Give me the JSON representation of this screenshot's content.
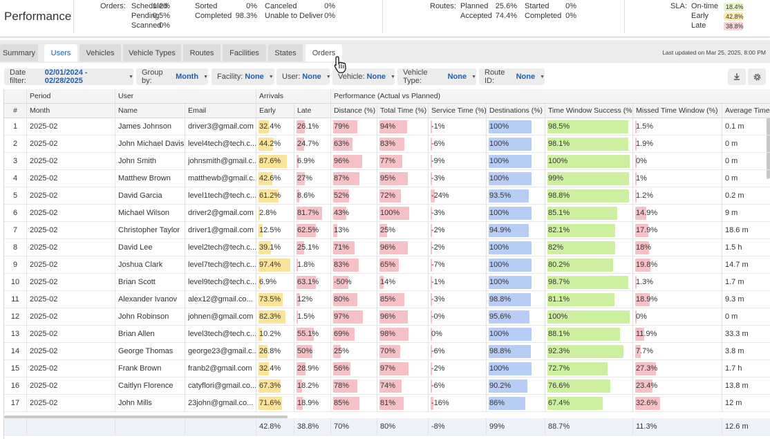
{
  "header": {
    "title": "Performance",
    "orders_label": "Orders:",
    "orders": [
      {
        "label": "Scheduled",
        "value": "1.2%"
      },
      {
        "label": "Pending",
        "value": "0.5%"
      },
      {
        "label": "Scanned",
        "value": "0%"
      },
      {
        "label": "Sorted",
        "value": "0%"
      },
      {
        "label": "Completed",
        "value": "98.3%"
      },
      {
        "label": "Canceled",
        "value": "0%"
      },
      {
        "label": "Unable to Deliver",
        "value": "0%"
      }
    ],
    "routes_label": "Routes:",
    "routes": [
      {
        "label": "Planned",
        "value": "25.6%"
      },
      {
        "label": "Accepted",
        "value": "74.4%"
      },
      {
        "label": "Started",
        "value": "0%"
      },
      {
        "label": "Completed",
        "value": "0%"
      }
    ],
    "sla_label": "SLA:",
    "sla": [
      {
        "label": "On-time",
        "value": "18.4%",
        "color": "#e6f5c8"
      },
      {
        "label": "Early",
        "value": "42.8%",
        "color": "#fbeab0"
      },
      {
        "label": "Late",
        "value": "38.8%",
        "color": "#f9d3d6"
      }
    ]
  },
  "tabs": [
    "Summary",
    "Users",
    "Vehicles",
    "Vehicle Types",
    "Routes",
    "Facilities",
    "States",
    "Orders"
  ],
  "active_tab": "Users",
  "last_updated": "Last updated on Mar 25, 2025, 8:00 PM",
  "filters": [
    {
      "label": "Date filter:",
      "value": "02/01/2024 - 02/28/2025"
    },
    {
      "label": "Group by:",
      "value": "Month"
    },
    {
      "label": "Facility:",
      "value": "None"
    },
    {
      "label": "User:",
      "value": "None"
    },
    {
      "label": "Vehicle:",
      "value": "None"
    },
    {
      "label": "Vehicle Type:",
      "value": "None"
    },
    {
      "label": "Route ID:",
      "value": "None"
    }
  ],
  "icons": {
    "download": "download-icon",
    "settings": "gear-icon",
    "cursor": "hand-pointer-icon",
    "caret": "caret-down-icon"
  },
  "colors": {
    "early": "#fbe39a",
    "late": "#f6c1c6",
    "perf": "#f6c1c6",
    "destinations": "#b8cdf5",
    "tws": "#cdf0a0",
    "missed": "#f6c1c6",
    "accent": "#1a5fb4"
  },
  "group_headers": {
    "period": "Period",
    "user": "User",
    "arrivals": "Arrivals",
    "performance": "Performance (Actual vs Planned)"
  },
  "columns": [
    "#",
    "Month",
    "Name",
    "Email",
    "Early",
    "Late",
    "Distance (%)",
    "Total Time (%)",
    "Service Time (%)",
    "Destinations (%)",
    "Time Window Success (%)",
    "Missed Time Window (%)",
    "Average Time"
  ],
  "rows": [
    [
      "1",
      "2025-02",
      "James Johnson",
      "driver3@gmail.com",
      "32.4%",
      "26.1%",
      "79%",
      "94%",
      "-1%",
      "100%",
      "98.5%",
      "1.5%",
      "0.1 m"
    ],
    [
      "2",
      "2025-02",
      "John Michael Davis",
      "level4tech@tech.c...",
      "44.2%",
      "24.7%",
      "63%",
      "83%",
      "-6%",
      "100%",
      "98.1%",
      "1.9%",
      "0 m"
    ],
    [
      "3",
      "2025-02",
      "John Smith",
      "johnsmith@gmail.c...",
      "87.6%",
      "6.9%",
      "96%",
      "77%",
      "-9%",
      "100%",
      "100%",
      "0%",
      "0 m"
    ],
    [
      "4",
      "2025-02",
      "Matthew Brown",
      "matthewb@gmail.c...",
      "42.6%",
      "27%",
      "87%",
      "95%",
      "-3%",
      "100%",
      "99%",
      "1%",
      "0 m"
    ],
    [
      "5",
      "2025-02",
      "David Garcia",
      "level1tech@tech.c...",
      "61.2%",
      "8.6%",
      "52%",
      "72%",
      "-24%",
      "93.5%",
      "98.8%",
      "1.2%",
      "0.2 m"
    ],
    [
      "6",
      "2025-02",
      "Michael Wilson",
      "driver2@gmail.com",
      "2.8%",
      "81.7%",
      "43%",
      "100%",
      "-3%",
      "100%",
      "85.1%",
      "14.9%",
      "9 m"
    ],
    [
      "7",
      "2025-02",
      "Christopher Taylor",
      "driver1@gmail.com",
      "12.5%",
      "62.5%",
      "13%",
      "25%",
      "-2%",
      "94.9%",
      "82.1%",
      "17.9%",
      "18.6 m"
    ],
    [
      "8",
      "2025-02",
      "David Lee",
      "level2tech@tech.c...",
      "39.1%",
      "25.1%",
      "71%",
      "96%",
      "-2%",
      "100%",
      "82%",
      "18%",
      "1.5 h"
    ],
    [
      "9",
      "2025-02",
      "Joshua Clark",
      "level7tech@tech.c...",
      "97.4%",
      "1.8%",
      "83%",
      "65%",
      "-7%",
      "100%",
      "80.2%",
      "19.8%",
      "14.7 m"
    ],
    [
      "10",
      "2025-02",
      "Brian Scott",
      "level9tech@tech.c...",
      "6.9%",
      "63.1%",
      "-50%",
      "14%",
      "-1%",
      "100%",
      "98.7%",
      "1.3%",
      "1.7 m"
    ],
    [
      "11",
      "2025-02",
      "Alexander Ivanov",
      "alex12@gmail.co...",
      "73.5%",
      "12%",
      "80%",
      "85%",
      "-3%",
      "98.8%",
      "81.1%",
      "18.9%",
      "9.3 m"
    ],
    [
      "12",
      "2025-02",
      "John Robinson",
      "johnen@gmail.com",
      "82.3%",
      "1.5%",
      "97%",
      "96%",
      "-0%",
      "95.6%",
      "100%",
      "0%",
      "0 m"
    ],
    [
      "13",
      "2025-02",
      "Brian Allen",
      "level3tech@tech.c...",
      "10.2%",
      "55.1%",
      "69%",
      "98%",
      "0%",
      "100%",
      "88.1%",
      "11.9%",
      "33.3 m"
    ],
    [
      "14",
      "2025-02",
      "George Thomas",
      "george23@gmail.c...",
      "26.8%",
      "50%",
      "25%",
      "70%",
      "-6%",
      "98.8%",
      "92.3%",
      "7.7%",
      "3.8 m"
    ],
    [
      "15",
      "2025-02",
      "Frank Brown",
      "franb2@gmail.com",
      "32.4%",
      "28.9%",
      "56%",
      "97%",
      "-2%",
      "100%",
      "72.7%",
      "27.3%",
      "1.7 h"
    ],
    [
      "16",
      "2025-02",
      "Caitlyn Florence",
      "catyflori@gmail.co...",
      "67.3%",
      "18.2%",
      "78%",
      "74%",
      "-6%",
      "90.2%",
      "76.6%",
      "23.4%",
      "13.8 m"
    ],
    [
      "17",
      "2025-02",
      "John Mills",
      "23john@gmail.co...",
      "71.6%",
      "18.9%",
      "85%",
      "81%",
      "-16%",
      "86%",
      "67.4%",
      "32.6%",
      "12 m"
    ]
  ],
  "footer": [
    "",
    "",
    "",
    "",
    "42.8%",
    "38.8%",
    "70%",
    "80%",
    "-8%",
    "99%",
    "88.7%",
    "11.3%",
    "12.6 m"
  ]
}
